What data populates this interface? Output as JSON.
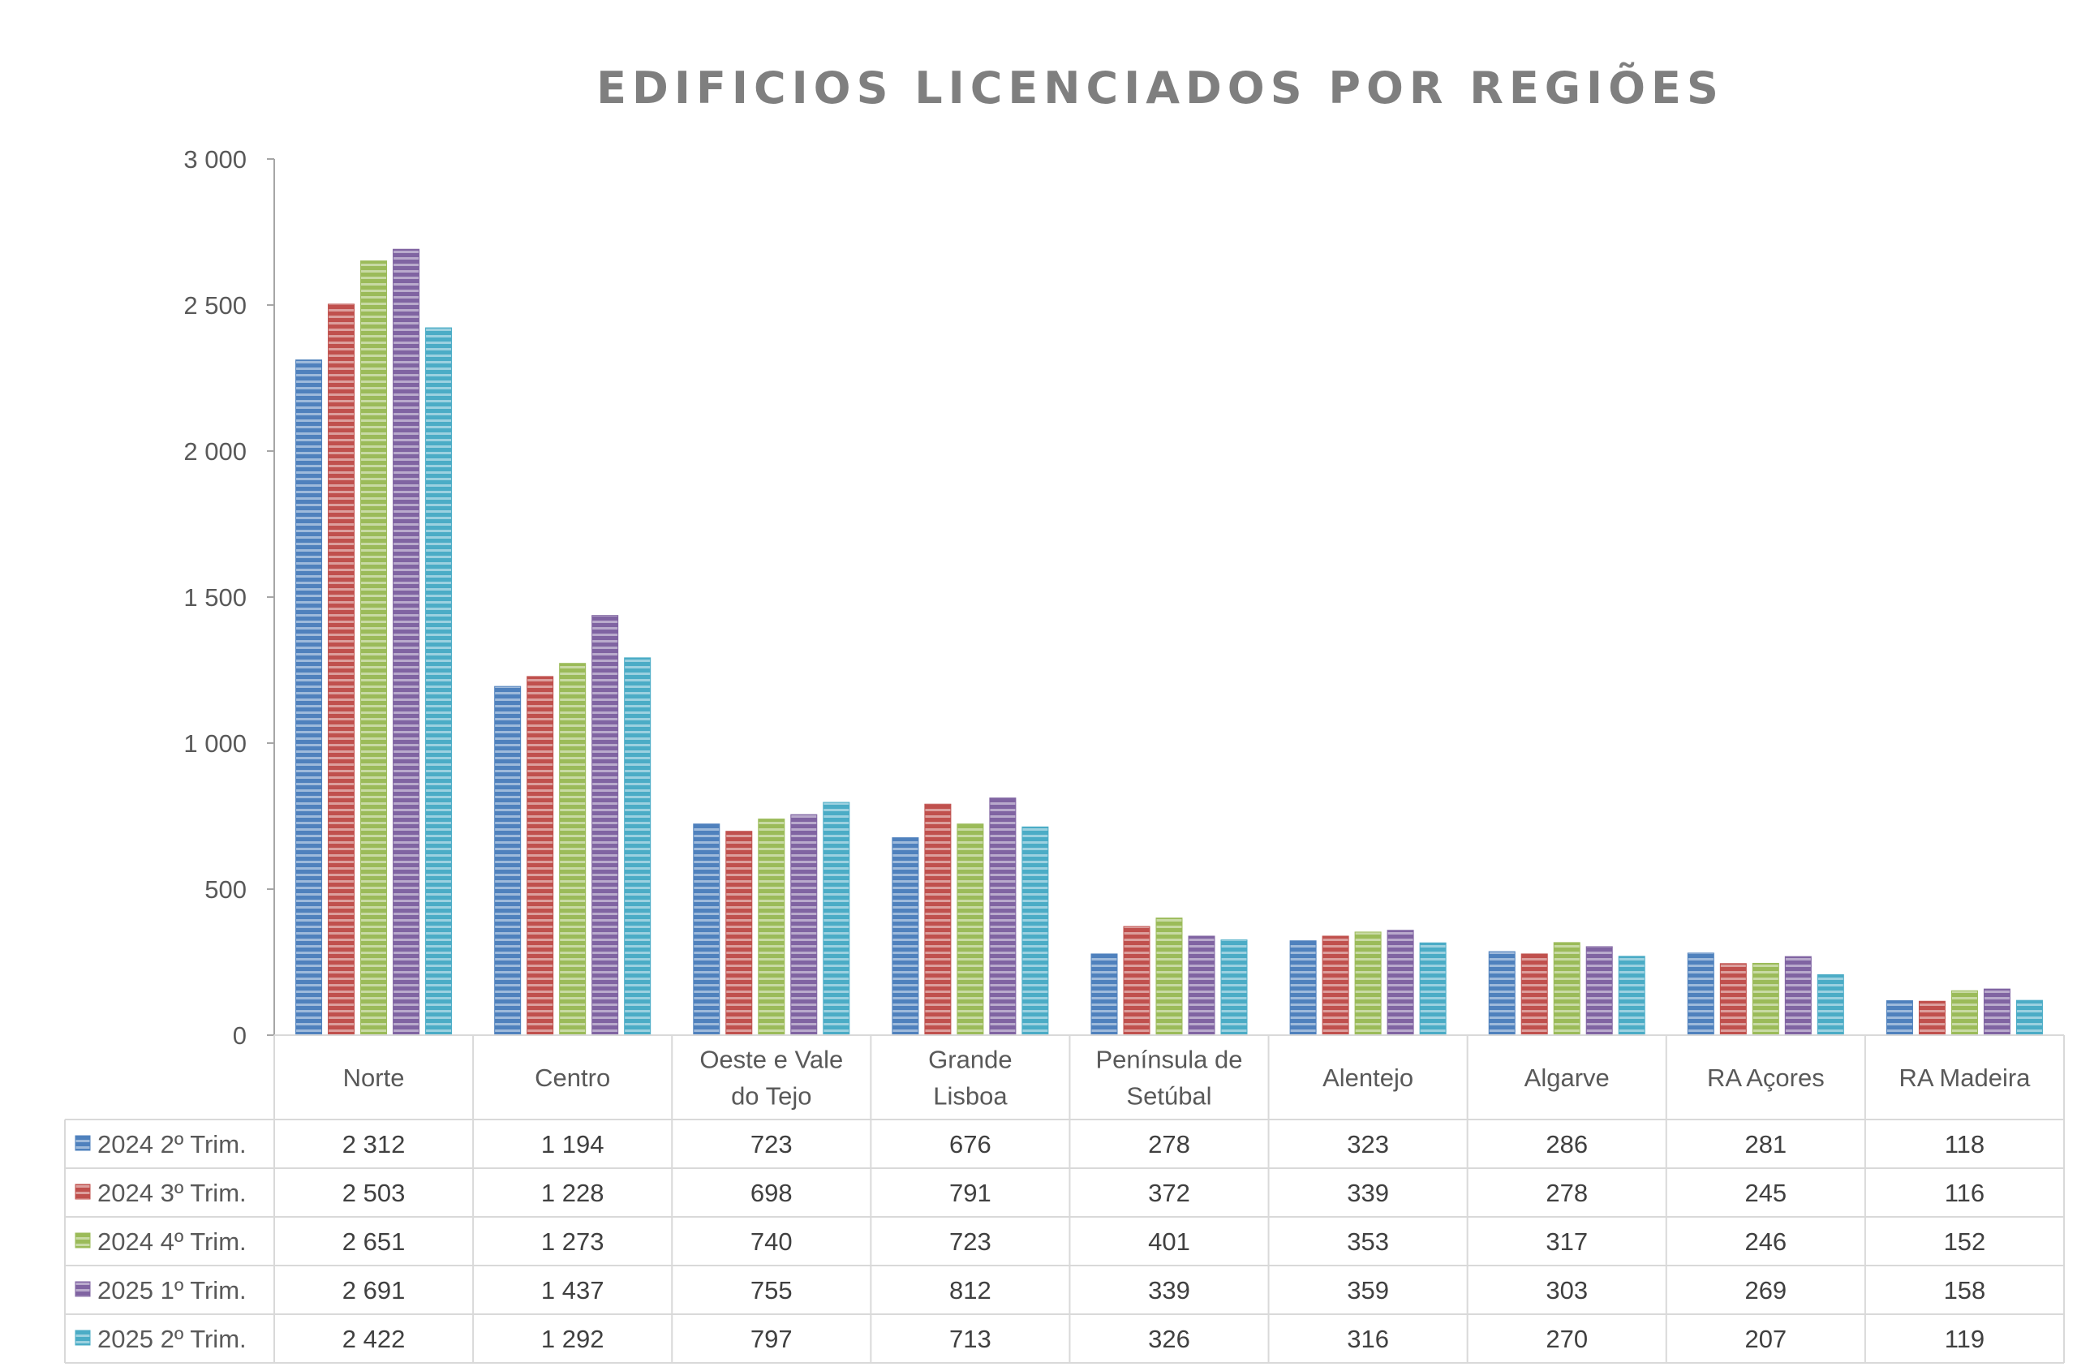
{
  "chart_data": {
    "type": "bar",
    "title": "EDIFICIOS LICENCIADOS POR REGIÕES",
    "categories": [
      [
        "Norte"
      ],
      [
        "Centro"
      ],
      [
        "Oeste e Vale",
        "do Tejo"
      ],
      [
        "Grande",
        "Lisboa"
      ],
      [
        "Península de",
        "Setúbal"
      ],
      [
        "Alentejo"
      ],
      [
        "Algarve"
      ],
      [
        "RA Açores"
      ],
      [
        "RA Madeira"
      ]
    ],
    "series": [
      {
        "name": "2024 2º Trim.",
        "color": "#4f81bd",
        "values": [
          2312,
          1194,
          723,
          676,
          278,
          323,
          286,
          281,
          118
        ],
        "labels": [
          "2 312",
          "1 194",
          "723",
          "676",
          "278",
          "323",
          "286",
          "281",
          "118"
        ]
      },
      {
        "name": "2024 3º Trim.",
        "color": "#c0504d",
        "values": [
          2503,
          1228,
          698,
          791,
          372,
          339,
          278,
          245,
          116
        ],
        "labels": [
          "2 503",
          "1 228",
          "698",
          "791",
          "372",
          "339",
          "278",
          "245",
          "116"
        ]
      },
      {
        "name": "2024 4º Trim.",
        "color": "#9bbb59",
        "values": [
          2651,
          1273,
          740,
          723,
          401,
          353,
          317,
          246,
          152
        ],
        "labels": [
          "2 651",
          "1 273",
          "740",
          "723",
          "401",
          "353",
          "317",
          "246",
          "152"
        ]
      },
      {
        "name": "2025 1º Trim.",
        "color": "#8064a2",
        "values": [
          2691,
          1437,
          755,
          812,
          339,
          359,
          303,
          269,
          158
        ],
        "labels": [
          "2 691",
          "1 437",
          "755",
          "812",
          "339",
          "359",
          "303",
          "269",
          "158"
        ]
      },
      {
        "name": "2025 2º Trim.",
        "color": "#4bacc6",
        "values": [
          2422,
          1292,
          797,
          713,
          326,
          316,
          270,
          207,
          119
        ],
        "labels": [
          "2 422",
          "1 292",
          "797",
          "713",
          "326",
          "316",
          "270",
          "207",
          "119"
        ]
      }
    ],
    "ylim": [
      0,
      3000
    ],
    "yticks": [
      0,
      500,
      1000,
      1500,
      2000,
      2500,
      3000
    ],
    "ytick_labels": [
      "0",
      "500",
      "1 000",
      "1 500",
      "2 000",
      "2 500",
      "3 000"
    ],
    "legend": "data-table",
    "grid": false
  }
}
